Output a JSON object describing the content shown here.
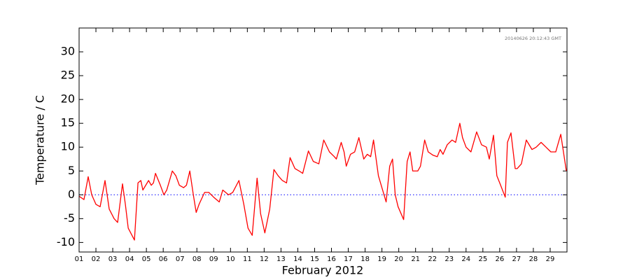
{
  "chart_data": {
    "type": "line",
    "xlabel": "February 2012",
    "ylabel": "Temperature / C",
    "annotation": "20140626 20:12:43 GMT",
    "color": "#ff0000",
    "x": [
      1.0,
      1.29,
      1.54,
      1.75,
      2.0,
      2.25,
      2.54,
      2.79,
      3.08,
      3.29,
      3.58,
      3.75,
      3.92,
      4.29,
      4.5,
      4.67,
      4.79,
      5.13,
      5.29,
      5.42,
      5.54,
      5.83,
      6.04,
      6.21,
      6.54,
      6.75,
      6.96,
      7.21,
      7.38,
      7.58,
      7.79,
      7.96,
      8.13,
      8.46,
      8.71,
      9.0,
      9.33,
      9.54,
      9.88,
      10.13,
      10.5,
      10.79,
      11.04,
      11.29,
      11.58,
      11.79,
      12.04,
      12.33,
      12.58,
      12.83,
      13.08,
      13.33,
      13.54,
      13.83,
      14.08,
      14.29,
      14.63,
      14.92,
      15.25,
      15.54,
      15.88,
      16.17,
      16.29,
      16.58,
      16.75,
      16.88,
      17.13,
      17.38,
      17.63,
      17.92,
      18.13,
      18.33,
      18.5,
      18.79,
      19.04,
      19.25,
      19.46,
      19.63,
      19.79,
      19.96,
      20.29,
      20.5,
      20.67,
      20.83,
      21.13,
      21.29,
      21.54,
      21.75,
      22.04,
      22.29,
      22.46,
      22.63,
      22.88,
      23.17,
      23.38,
      23.63,
      23.79,
      24.0,
      24.29,
      24.63,
      24.92,
      25.21,
      25.38,
      25.63,
      25.83,
      26.0,
      26.33,
      26.46,
      26.67,
      26.92,
      27.04,
      27.29,
      27.58,
      27.92,
      28.17,
      28.46,
      28.75,
      29.04,
      29.33,
      29.63,
      29.96
    ],
    "values": [
      -0.3,
      -1,
      3.8,
      0,
      -2,
      -2.5,
      3,
      -3,
      -5,
      -5.8,
      2.3,
      -2,
      -7,
      -9.5,
      2.5,
      3,
      1,
      3,
      2,
      2.5,
      4.5,
      2,
      0,
      1,
      5,
      4,
      2,
      1.5,
      2,
      5,
      0,
      -3.7,
      -2,
      0.5,
      0.5,
      -0.5,
      -1.5,
      1,
      0,
      0.5,
      3,
      -2,
      -7,
      -8.5,
      3.5,
      -4,
      -8,
      -3,
      5.3,
      4,
      3,
      2.5,
      7.8,
      5.5,
      5,
      4.5,
      9.2,
      7,
      6.5,
      11.5,
      9,
      8,
      7.5,
      11,
      9,
      6,
      8.5,
      9,
      12,
      7.5,
      8.5,
      8,
      11.5,
      4,
      1,
      -1.5,
      6,
      7.5,
      0,
      -2.5,
      -5.2,
      7,
      9,
      5,
      5,
      6,
      11.5,
      9,
      8.3,
      8,
      9.5,
      8.5,
      10.5,
      11.5,
      11,
      15,
      12,
      10,
      9,
      13.2,
      10.5,
      10,
      7.5,
      12.5,
      4,
      2.5,
      -0.5,
      11,
      13,
      5.5,
      5.5,
      6.5,
      11.5,
      9.5,
      10,
      11,
      10,
      9,
      9,
      12.7,
      5
    ],
    "xlim": [
      1,
      30
    ],
    "ylim": [
      -12,
      35
    ],
    "yticks": [
      -10,
      -5,
      0,
      5,
      10,
      15,
      20,
      25,
      30
    ],
    "xticks": [
      {
        "value": 1,
        "label": "01"
      },
      {
        "value": 2,
        "label": "02"
      },
      {
        "value": 3,
        "label": "03"
      },
      {
        "value": 4,
        "label": "04"
      },
      {
        "value": 5,
        "label": "05"
      },
      {
        "value": 6,
        "label": "06"
      },
      {
        "value": 7,
        "label": "07"
      },
      {
        "value": 8,
        "label": "08"
      },
      {
        "value": 9,
        "label": "09"
      },
      {
        "value": 10,
        "label": "10"
      },
      {
        "value": 11,
        "label": "11"
      },
      {
        "value": 12,
        "label": "12"
      },
      {
        "value": 13,
        "label": "13"
      },
      {
        "value": 14,
        "label": "14"
      },
      {
        "value": 15,
        "label": "15"
      },
      {
        "value": 16,
        "label": "16"
      },
      {
        "value": 17,
        "label": "17"
      },
      {
        "value": 18,
        "label": "18"
      },
      {
        "value": 19,
        "label": "19"
      },
      {
        "value": 20,
        "label": "20"
      },
      {
        "value": 21,
        "label": "21"
      },
      {
        "value": 22,
        "label": "22"
      },
      {
        "value": 23,
        "label": "23"
      },
      {
        "value": 24,
        "label": "24"
      },
      {
        "value": 25,
        "label": "25"
      },
      {
        "value": 26,
        "label": "26"
      },
      {
        "value": 27,
        "label": "27"
      },
      {
        "value": 28,
        "label": "28"
      },
      {
        "value": 29,
        "label": "29"
      }
    ],
    "reference_line": {
      "value": 0,
      "color": "#0000ff"
    }
  }
}
